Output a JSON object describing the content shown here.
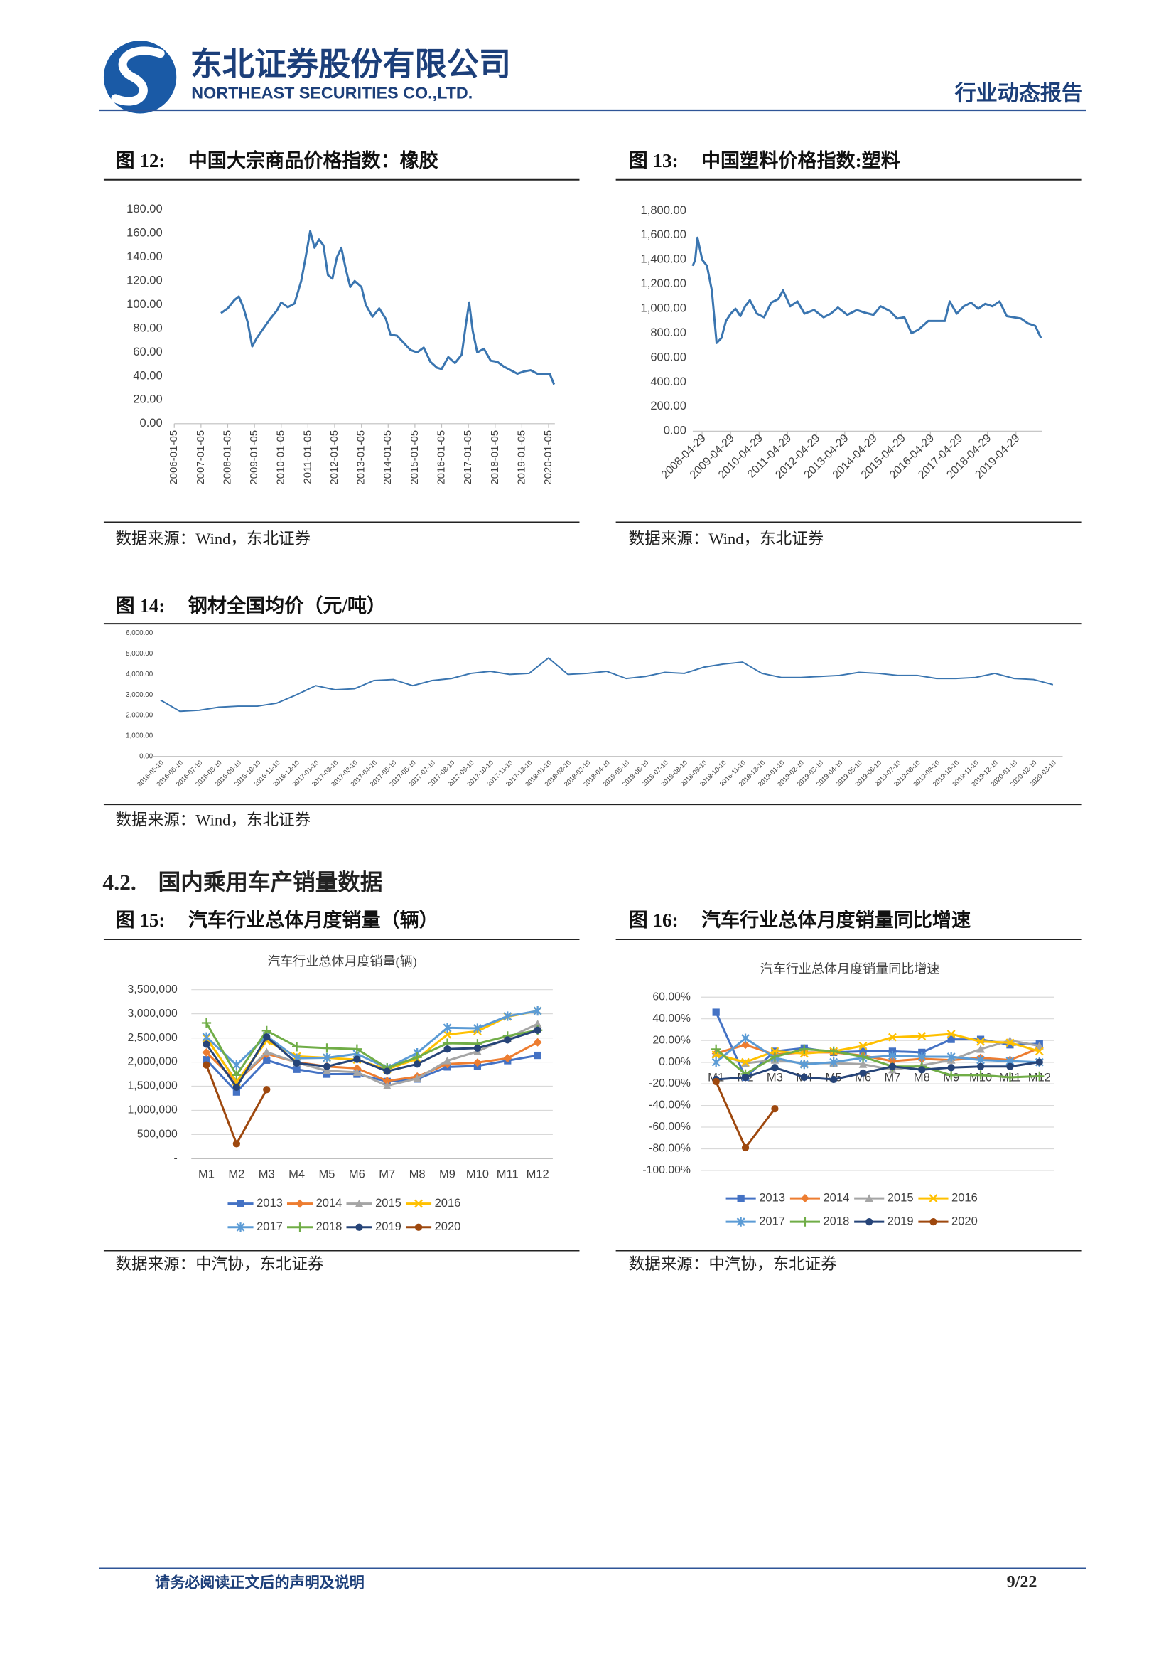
{
  "header": {
    "company_cn": "东北证券股份有限公司",
    "company_en": "NORTHEAST SECURITIES CO.,LTD.",
    "report_type": "行业动态报告"
  },
  "section": {
    "number": "4.2.",
    "title": "国内乘用车产销量数据"
  },
  "footer": {
    "disclaimer": "请务必阅读正文后的声明及说明",
    "page": "9/22"
  },
  "chart_data": [
    {
      "type": "line",
      "figure": "图 12:",
      "caption": "中国大宗商品价格指数：橡胶",
      "source": "数据来源：Wind，东北证券",
      "color": "#3a75b0",
      "grid": false,
      "x": [
        "2007-10-05",
        "2008-01-05",
        "2008-04-05",
        "2008-06-05",
        "2008-08-05",
        "2008-10-05",
        "2008-12-05",
        "2009-02-05",
        "2009-05-05",
        "2009-08-05",
        "2009-11-05",
        "2010-01-05",
        "2010-04-05",
        "2010-07-05",
        "2010-10-05",
        "2010-12-05",
        "2011-02-05",
        "2011-04-05",
        "2011-06-05",
        "2011-08-05",
        "2011-10-05",
        "2011-12-05",
        "2012-02-05",
        "2012-04-05",
        "2012-06-05",
        "2012-08-05",
        "2012-10-05",
        "2013-01-05",
        "2013-03-05",
        "2013-06-05",
        "2013-09-05",
        "2013-12-05",
        "2014-02-05",
        "2014-05-05",
        "2014-08-05",
        "2014-11-05",
        "2015-02-05",
        "2015-05-05",
        "2015-08-05",
        "2015-11-05",
        "2016-01-05",
        "2016-04-05",
        "2016-07-05",
        "2016-10-05",
        "2016-12-05",
        "2017-01-15",
        "2017-03-05",
        "2017-05-05",
        "2017-08-05",
        "2017-11-05",
        "2018-02-05",
        "2018-05-05",
        "2018-08-05",
        "2018-11-05",
        "2019-02-05",
        "2019-05-05",
        "2019-08-05",
        "2019-11-05",
        "2020-01-20",
        "2020-03-20"
      ],
      "values": [
        93,
        97,
        104,
        107,
        98,
        85,
        65,
        72,
        80,
        88,
        95,
        102,
        98,
        101,
        120,
        140,
        162,
        148,
        155,
        150,
        125,
        122,
        140,
        148,
        130,
        115,
        120,
        115,
        100,
        90,
        97,
        88,
        75,
        74,
        68,
        62,
        60,
        64,
        52,
        47,
        46,
        56,
        51,
        58,
        85,
        102,
        78,
        60,
        63,
        53,
        52,
        48,
        45,
        42,
        44,
        45,
        42,
        42,
        42,
        33
      ],
      "xlim": [
        "2006-01-05",
        "2020-03-31"
      ],
      "xticks": [
        "2006-01-05",
        "2007-01-05",
        "2008-01-05",
        "2009-01-05",
        "2010-01-05",
        "2011-01-05",
        "2012-01-05",
        "2013-01-05",
        "2014-01-05",
        "2015-01-05",
        "2016-01-05",
        "2017-01-05",
        "2018-01-05",
        "2019-01-05",
        "2020-01-05"
      ],
      "ylim": [
        0,
        180
      ],
      "yticks": [
        {
          "value": 0,
          "label": "0.00"
        },
        {
          "value": 20,
          "label": "20.00"
        },
        {
          "value": 40,
          "label": "40.00"
        },
        {
          "value": 60,
          "label": "60.00"
        },
        {
          "value": 80,
          "label": "80.00"
        },
        {
          "value": 100,
          "label": "100.00"
        },
        {
          "value": 120,
          "label": "120.00"
        },
        {
          "value": 140,
          "label": "140.00"
        },
        {
          "value": 160,
          "label": "160.00"
        },
        {
          "value": 180,
          "label": "180.00"
        }
      ]
    },
    {
      "type": "line",
      "figure": "图 13:",
      "caption": "中国塑料价格指数:塑料",
      "source": "数据来源：Wind，东北证券",
      "color": "#3a75b0",
      "grid": false,
      "x": [
        "2008-01-01",
        "2008-02-01",
        "2008-03-01",
        "2008-05-01",
        "2008-07-01",
        "2008-09-01",
        "2008-11-01",
        "2009-01-01",
        "2009-03-01",
        "2009-05-01",
        "2009-07-01",
        "2009-09-01",
        "2009-11-01",
        "2010-01-01",
        "2010-04-01",
        "2010-07-01",
        "2010-10-01",
        "2011-01-01",
        "2011-03-01",
        "2011-06-01",
        "2011-09-01",
        "2011-12-01",
        "2012-04-01",
        "2012-08-01",
        "2012-11-01",
        "2013-02-01",
        "2013-06-01",
        "2013-10-01",
        "2014-01-01",
        "2014-05-01",
        "2014-08-01",
        "2014-12-01",
        "2015-03-01",
        "2015-06-01",
        "2015-09-01",
        "2015-12-01",
        "2016-04-01",
        "2016-08-01",
        "2016-11-01",
        "2017-01-01",
        "2017-04-01",
        "2017-07-01",
        "2017-10-01",
        "2018-01-01",
        "2018-04-01",
        "2018-07-01",
        "2018-10-01",
        "2019-01-01",
        "2019-04-01",
        "2019-07-01",
        "2019-10-01",
        "2020-01-01",
        "2020-03-15"
      ],
      "values": [
        1350,
        1400,
        1580,
        1400,
        1350,
        1150,
        720,
        760,
        900,
        960,
        1000,
        940,
        1020,
        1070,
        960,
        930,
        1050,
        1080,
        1150,
        1020,
        1060,
        960,
        990,
        930,
        960,
        1010,
        950,
        990,
        970,
        950,
        1020,
        980,
        920,
        930,
        800,
        830,
        900,
        900,
        900,
        1060,
        960,
        1020,
        1050,
        1000,
        1040,
        1020,
        1060,
        940,
        930,
        920,
        880,
        860,
        760
      ],
      "xlim": [
        "2008-01-01",
        "2020-04-01"
      ],
      "xticks": [
        "2008-04-29",
        "2009-04-29",
        "2010-04-29",
        "2011-04-29",
        "2012-04-29",
        "2013-04-29",
        "2014-04-29",
        "2015-04-29",
        "2016-04-29",
        "2017-04-29",
        "2018-04-29",
        "2019-04-29"
      ],
      "ylim": [
        0,
        1800
      ],
      "yticks": [
        {
          "value": 0,
          "label": "0.00"
        },
        {
          "value": 200,
          "label": "200.00"
        },
        {
          "value": 400,
          "label": "400.00"
        },
        {
          "value": 600,
          "label": "600.00"
        },
        {
          "value": 800,
          "label": "800.00"
        },
        {
          "value": 1000,
          "label": "1,000.00"
        },
        {
          "value": 1200,
          "label": "1,200.00"
        },
        {
          "value": 1400,
          "label": "1,400.00"
        },
        {
          "value": 1600,
          "label": "1,600.00"
        },
        {
          "value": 1800,
          "label": "1,800.00"
        }
      ]
    },
    {
      "type": "line",
      "figure": "图 14:",
      "caption": "钢材全国均价（元/吨）",
      "source": "数据来源：Wind，东北证券",
      "color": "#3a75b0",
      "grid": false,
      "categories": [
        "2016-05-10",
        "2016-06-10",
        "2016-07-10",
        "2016-08-10",
        "2016-09-10",
        "2016-10-10",
        "2016-11-10",
        "2016-12-10",
        "2017-01-10",
        "2017-02-10",
        "2017-03-10",
        "2017-04-10",
        "2017-05-10",
        "2017-06-10",
        "2017-07-10",
        "2017-08-10",
        "2017-09-10",
        "2017-10-10",
        "2017-11-10",
        "2017-12-10",
        "2018-01-10",
        "2018-02-10",
        "2018-03-10",
        "2018-04-10",
        "2018-05-10",
        "2018-06-10",
        "2018-07-10",
        "2018-08-10",
        "2018-09-10",
        "2018-10-10",
        "2018-11-10",
        "2018-12-10",
        "2019-01-10",
        "2019-02-10",
        "2019-03-10",
        "2019-04-10",
        "2019-05-10",
        "2019-06-10",
        "2019-07-10",
        "2019-08-10",
        "2019-09-10",
        "2019-10-10",
        "2019-11-10",
        "2019-12-10",
        "2020-01-10",
        "2020-02-10",
        "2020-03-10"
      ],
      "values": [
        2750,
        2200,
        2250,
        2400,
        2450,
        2450,
        2600,
        3000,
        3450,
        3250,
        3300,
        3700,
        3750,
        3450,
        3700,
        3800,
        4050,
        4150,
        4000,
        4050,
        4800,
        4000,
        4050,
        4150,
        3800,
        3900,
        4100,
        4050,
        4350,
        4500,
        4600,
        4050,
        3850,
        3850,
        3900,
        3950,
        4100,
        4050,
        3950,
        3950,
        3800,
        3800,
        3850,
        4050,
        3800,
        3750,
        3500
      ],
      "ylim": [
        0,
        6000
      ],
      "yticks": [
        {
          "value": 0,
          "label": "0.00"
        },
        {
          "value": 1000,
          "label": "1,000.00"
        },
        {
          "value": 2000,
          "label": "2,000.00"
        },
        {
          "value": 3000,
          "label": "3,000.00"
        },
        {
          "value": 4000,
          "label": "4,000.00"
        },
        {
          "value": 5000,
          "label": "5,000.00"
        },
        {
          "value": 6000,
          "label": "6,000.00"
        }
      ]
    },
    {
      "type": "line",
      "figure": "图 15:",
      "caption": "汽车行业总体月度销量（辆）",
      "title": "汽车行业总体月度销量(辆)",
      "source": "数据来源：中汽协，东北证券",
      "grid": true,
      "legend": "bottom",
      "categories": [
        "M1",
        "M2",
        "M3",
        "M4",
        "M5",
        "M6",
        "M7",
        "M8",
        "M9",
        "M10",
        "M11",
        "M12"
      ],
      "ylim": [
        0,
        3500000
      ],
      "yticks": [
        {
          "value": 0,
          "label": "-"
        },
        {
          "value": 500000,
          "label": "500,000"
        },
        {
          "value": 1000000,
          "label": "1,000,000"
        },
        {
          "value": 1500000,
          "label": "1,500,000"
        },
        {
          "value": 2000000,
          "label": "2,000,000"
        },
        {
          "value": 2500000,
          "label": "2,500,000"
        },
        {
          "value": 3000000,
          "label": "3,000,000"
        },
        {
          "value": 3500000,
          "label": "3,500,000"
        }
      ],
      "series": [
        {
          "name": "2013",
          "color": "#4472c4",
          "marker": "square",
          "values": [
            2050000,
            1380000,
            2040000,
            1850000,
            1750000,
            1750000,
            1600000,
            1650000,
            1900000,
            1920000,
            2030000,
            2140000
          ]
        },
        {
          "name": "2014",
          "color": "#ed7d31",
          "marker": "diamond",
          "values": [
            2200000,
            1590000,
            2170000,
            2000000,
            1910000,
            1870000,
            1610000,
            1700000,
            1960000,
            1990000,
            2080000,
            2410000
          ]
        },
        {
          "name": "2015",
          "color": "#a5a5a5",
          "marker": "triangle",
          "values": [
            2500000,
            1600000,
            2210000,
            1990000,
            1820000,
            1790000,
            1510000,
            1660000,
            2030000,
            2220000,
            2500000,
            2790000
          ]
        },
        {
          "name": "2016",
          "color": "#ffc000",
          "marker": "x",
          "values": [
            2500000,
            1590000,
            2440000,
            2120000,
            2090000,
            2050000,
            1850000,
            2070000,
            2570000,
            2640000,
            2940000,
            3060000
          ]
        },
        {
          "name": "2017",
          "color": "#5b9bd5",
          "marker": "asterisk",
          "values": [
            2520000,
            1940000,
            2540000,
            2080000,
            2090000,
            2170000,
            1880000,
            2190000,
            2710000,
            2700000,
            2950000,
            3060000
          ]
        },
        {
          "name": "2018",
          "color": "#70ad47",
          "marker": "plus",
          "values": [
            2810000,
            1730000,
            2650000,
            2320000,
            2290000,
            2270000,
            1880000,
            2100000,
            2390000,
            2380000,
            2540000,
            2660000
          ]
        },
        {
          "name": "2019",
          "color": "#264478",
          "marker": "circle",
          "values": [
            2370000,
            1480000,
            2520000,
            1980000,
            1910000,
            2060000,
            1810000,
            1960000,
            2270000,
            2290000,
            2460000,
            2660000
          ]
        },
        {
          "name": "2020",
          "color": "#9e480e",
          "marker": "circle",
          "values": [
            1940000,
            310000,
            1430000,
            null,
            null,
            null,
            null,
            null,
            null,
            null,
            null,
            null
          ]
        }
      ]
    },
    {
      "type": "line",
      "figure": "图 16:",
      "caption": "汽车行业总体月度销量同比增速",
      "title": "汽车行业总体月度销量同比增速",
      "source": "数据来源：中汽协，东北证券",
      "grid": true,
      "legend": "bottom",
      "categories": [
        "M1",
        "M2",
        "M3",
        "M4",
        "M5",
        "M6",
        "M7",
        "M8",
        "M9",
        "M10",
        "M11",
        "M12"
      ],
      "ylim": [
        -100,
        60
      ],
      "yticks": [
        {
          "value": -100,
          "label": "-100.00%"
        },
        {
          "value": -80,
          "label": "-80.00%"
        },
        {
          "value": -60,
          "label": "-60.00%"
        },
        {
          "value": -40,
          "label": "-40.00%"
        },
        {
          "value": -20,
          "label": "-20.00%"
        },
        {
          "value": 0,
          "label": "0.00%"
        },
        {
          "value": 20,
          "label": "20.00%"
        },
        {
          "value": 40,
          "label": "40.00%"
        },
        {
          "value": 60,
          "label": "60.00%"
        }
      ],
      "series": [
        {
          "name": "2013",
          "color": "#4472c4",
          "marker": "square",
          "values": [
            46,
            -14,
            10,
            13,
            9,
            10,
            10,
            9,
            21,
            21,
            16,
            17
          ]
        },
        {
          "name": "2014",
          "color": "#ed7d31",
          "marker": "diamond",
          "values": [
            8,
            16,
            7,
            9,
            9,
            6,
            1,
            3,
            2,
            4,
            2,
            13
          ]
        },
        {
          "name": "2015",
          "color": "#a5a5a5",
          "marker": "triangle",
          "values": [
            8,
            -1,
            2,
            -1,
            -1,
            -2,
            -7,
            -3,
            2,
            12,
            20,
            15
          ]
        },
        {
          "name": "2016",
          "color": "#ffc000",
          "marker": "x",
          "values": [
            7,
            0,
            10,
            8,
            10,
            15,
            23,
            24,
            26,
            19,
            18,
            10
          ]
        },
        {
          "name": "2017",
          "color": "#5b9bd5",
          "marker": "asterisk",
          "values": [
            0,
            22,
            4,
            -2,
            0,
            4,
            6,
            5,
            5,
            2,
            1,
            0
          ]
        },
        {
          "name": "2018",
          "color": "#70ad47",
          "marker": "plus",
          "values": [
            12,
            -11,
            5,
            12,
            10,
            5,
            -4,
            -4,
            -12,
            -12,
            -14,
            -13
          ]
        },
        {
          "name": "2019",
          "color": "#264478",
          "marker": "circle",
          "values": [
            -16,
            -14,
            -5,
            -14,
            -16,
            -10,
            -4,
            -7,
            -5,
            -4,
            -4,
            0
          ]
        },
        {
          "name": "2020",
          "color": "#9e480e",
          "marker": "circle",
          "values": [
            -18,
            -79,
            -43,
            null,
            null,
            null,
            null,
            null,
            null,
            null,
            null,
            null
          ]
        }
      ]
    }
  ]
}
